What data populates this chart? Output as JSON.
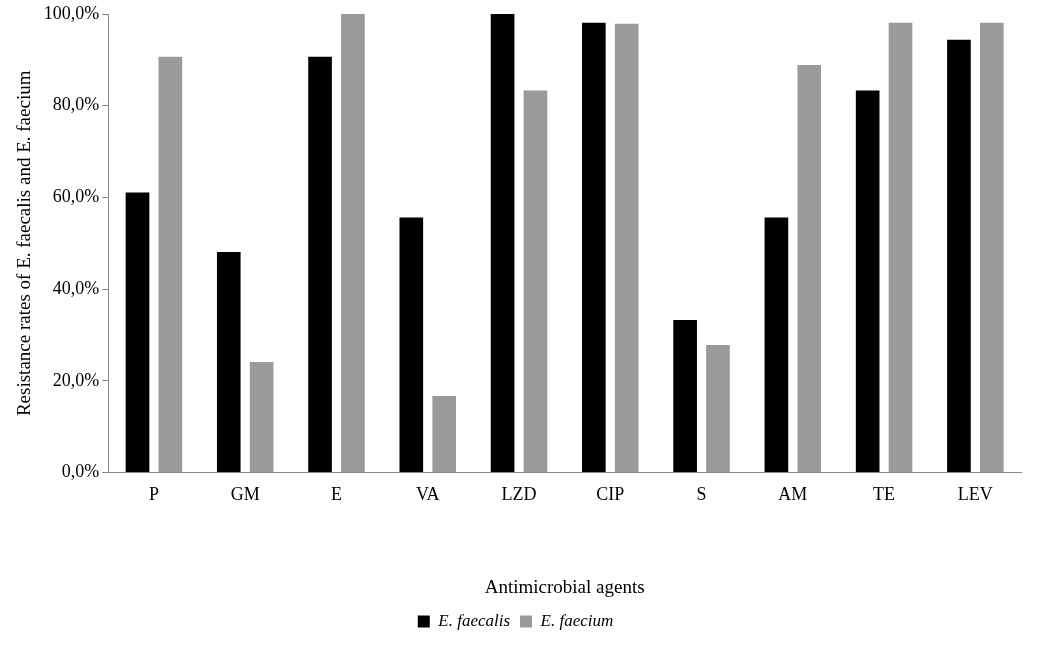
{
  "chart_data": {
    "type": "bar",
    "xlabel": "Antimicrobial agents",
    "ylabel": "Resistance rates of E. faecalis and E. faecium",
    "categories": [
      "P",
      "GM",
      "E",
      "VA",
      "LZD",
      "CIP",
      "S",
      "AM",
      "TE",
      "LEV"
    ],
    "series": [
      {
        "name": "E. faecalis",
        "color": "#000000",
        "values": [
          61.1,
          48.1,
          90.7,
          55.6,
          100,
          98.1,
          33.3,
          55.6,
          83.3,
          94.4
        ]
      },
      {
        "name": "E. faecium",
        "color": "#9a9a9a",
        "values": [
          90.7,
          24.1,
          100,
          16.7,
          83.3,
          97.9,
          27.8,
          88.9,
          98.1,
          98.1
        ]
      }
    ],
    "ylim": [
      0,
      100
    ],
    "yticks": [
      {
        "value": 0,
        "label": "0,0%"
      },
      {
        "value": 20,
        "label": "20,0%"
      },
      {
        "value": 40,
        "label": "40,0%"
      },
      {
        "value": 60,
        "label": "60,0%"
      },
      {
        "value": 80,
        "label": "80,0%"
      },
      {
        "value": 100,
        "label": "100,0%"
      }
    ],
    "grid": false,
    "legend": "bottom"
  }
}
